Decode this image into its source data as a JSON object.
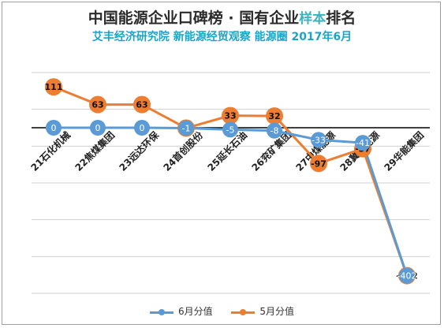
{
  "title": {
    "main": "中国能源企业口碑榜 · 国有企业",
    "highlight": "样本",
    "tail": "排名"
  },
  "subtitle": "艾丰经济研究院 新能源经贸观察 能源圈 2017年6月",
  "colors": {
    "june": "#5b9bd5",
    "may": "#ed7d31",
    "gridline": "#d0d0d0",
    "zero_line": "#000000"
  },
  "chart_data": {
    "type": "line",
    "categories": [
      "21石化机械",
      "22焦煤集团",
      "23远达环保",
      "24首创股份",
      "25延长石油",
      "26兖矿集团",
      "27中煤能源",
      "28冀中能源",
      "29华能集团"
    ],
    "series": [
      {
        "name": "6月分值",
        "values": [
          0,
          0,
          0,
          -1,
          -5,
          -8,
          -33,
          -41,
          -402
        ],
        "labels": [
          "0",
          "0",
          "0",
          "-1",
          "-5",
          "-8",
          "-33",
          "-41",
          "-402"
        ]
      },
      {
        "name": "5月分值",
        "values": [
          111,
          63,
          63,
          -1,
          33,
          32,
          -97,
          -57,
          -402
        ],
        "labels": [
          "111",
          "63",
          "63",
          "-1",
          "33",
          "32",
          "-97",
          "-57",
          "-402"
        ]
      }
    ],
    "ylim": [
      -450,
      150
    ],
    "grid": true,
    "legend": "bottom"
  }
}
